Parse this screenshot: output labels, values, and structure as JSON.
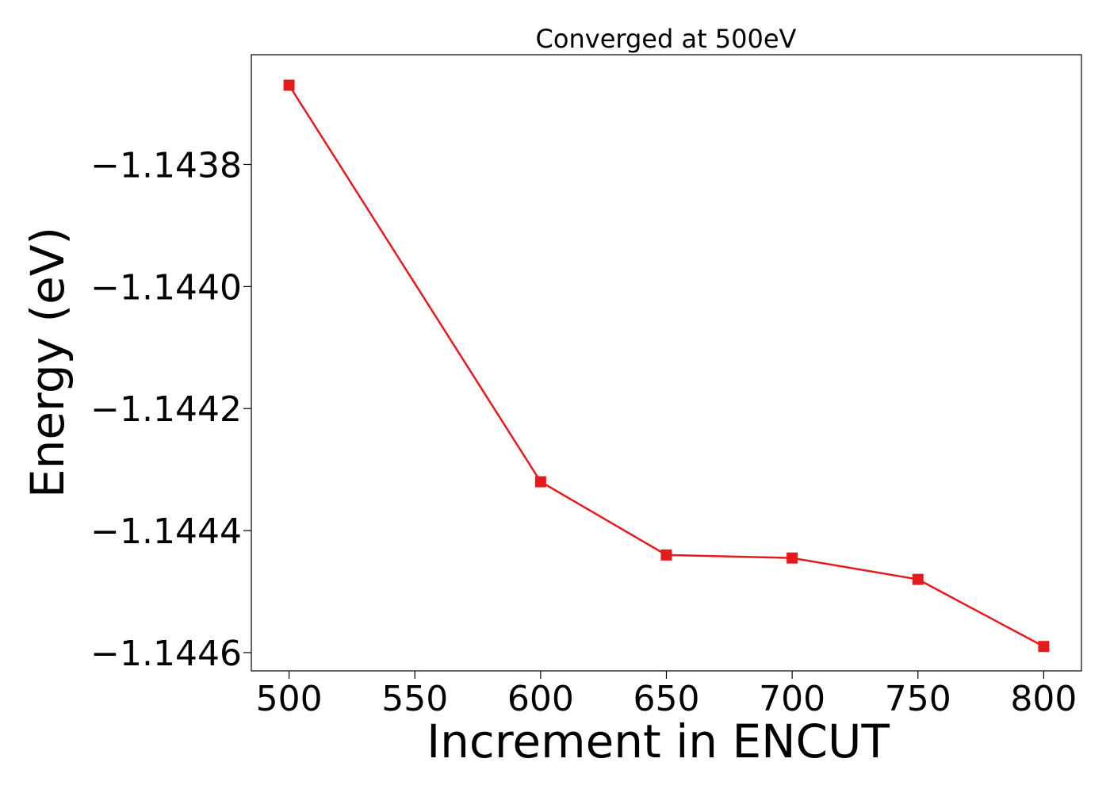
{
  "chart_data": {
    "type": "line",
    "title": "Converged at 500eV",
    "xlabel": "Increment in ENCUT",
    "ylabel": "Energy (eV)",
    "x": [
      500,
      600,
      650,
      700,
      750,
      800
    ],
    "series": [
      {
        "values": [
          -1.14367,
          -1.14432,
          -1.14444,
          -1.144445,
          -1.14448,
          -1.14459
        ],
        "color": "#e41a1c",
        "marker": "square"
      }
    ],
    "xlim": [
      485,
      815
    ],
    "ylim": [
      -1.14463,
      -1.14362
    ],
    "xticks": [
      500,
      550,
      600,
      650,
      700,
      750,
      800
    ],
    "xtick_labels": [
      "500",
      "550",
      "600",
      "650",
      "700",
      "750",
      "800"
    ],
    "yticks": [
      -1.1438,
      -1.144,
      -1.1442,
      -1.1444,
      -1.1446
    ],
    "ytick_labels": [
      "−1.1438",
      "−1.1440",
      "−1.1442",
      "−1.1444",
      "−1.1446"
    ],
    "grid": false,
    "legend": false
  }
}
